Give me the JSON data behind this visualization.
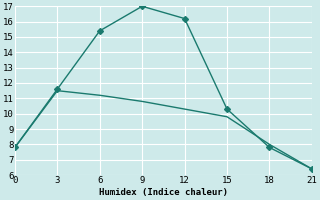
{
  "line1_x": [
    0,
    3,
    6,
    9,
    12,
    15,
    18,
    21
  ],
  "line1_y": [
    7.8,
    11.6,
    15.4,
    17.0,
    16.2,
    10.3,
    7.8,
    6.4
  ],
  "line2_x": [
    0,
    3,
    6,
    9,
    12,
    15,
    18,
    21
  ],
  "line2_y": [
    7.8,
    11.5,
    11.2,
    10.8,
    10.3,
    9.8,
    8.0,
    6.4
  ],
  "color": "#1a7a6e",
  "xlabel": "Humidex (Indice chaleur)",
  "xlim": [
    0,
    21
  ],
  "ylim": [
    6,
    17
  ],
  "yticks": [
    6,
    7,
    8,
    9,
    10,
    11,
    12,
    13,
    14,
    15,
    16,
    17
  ],
  "xticks": [
    0,
    3,
    6,
    9,
    12,
    15,
    18,
    21
  ],
  "bg_color": "#ceeaea",
  "grid_color": "#ffffff"
}
